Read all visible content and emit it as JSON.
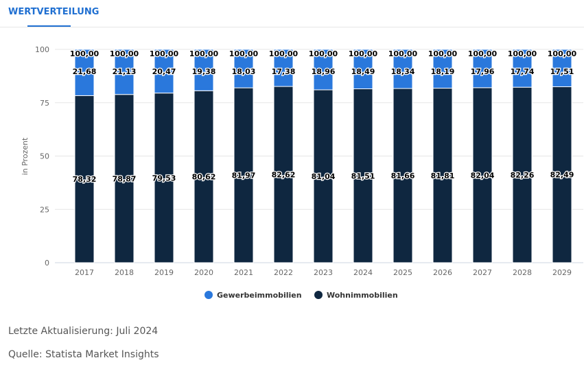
{
  "tab": {
    "label": "WERTVERTEILUNG"
  },
  "footer": {
    "updated": "Letzte Aktualisierung: Juli 2024",
    "source": "Quelle: Statista Market Insights"
  },
  "chart_data": {
    "type": "bar",
    "stacked": true,
    "ylabel": "in Prozent",
    "ylim": [
      0,
      100
    ],
    "yticks": [
      0,
      25,
      50,
      75,
      100
    ],
    "grid": true,
    "legend_position": "bottom",
    "categories": [
      "2017",
      "2018",
      "2019",
      "2020",
      "2021",
      "2022",
      "2023",
      "2024",
      "2025",
      "2026",
      "2027",
      "2028",
      "2029"
    ],
    "total_labels": [
      "100,00",
      "100,00",
      "100,00",
      "100,00",
      "100,00",
      "100,00",
      "100,00",
      "100,00",
      "100,00",
      "100,00",
      "100,00",
      "100,00",
      "100,00"
    ],
    "series": [
      {
        "name": "Wohnimmobilien",
        "color": "#0f2740",
        "values": [
          78.32,
          78.87,
          79.53,
          80.62,
          81.97,
          82.62,
          81.04,
          81.51,
          81.66,
          81.81,
          82.04,
          82.26,
          82.49
        ]
      },
      {
        "name": "Gewerbeimmobilien",
        "color": "#2a78dc",
        "values": [
          21.68,
          21.13,
          20.47,
          19.38,
          18.03,
          17.38,
          18.96,
          18.49,
          18.34,
          18.19,
          17.96,
          17.74,
          17.51
        ]
      }
    ],
    "legend_order": [
      "Gewerbeimmobilien",
      "Wohnimmobilien"
    ]
  }
}
